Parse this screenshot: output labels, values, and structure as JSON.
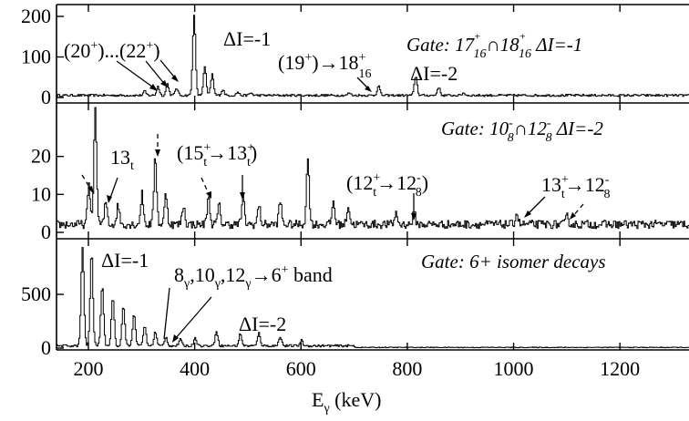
{
  "chart_data": {
    "type": "line",
    "xlabel": "E",
    "xlabel_sub": "γ",
    "xlabel_unit": " (keV)",
    "xlim": [
      140,
      1330
    ],
    "xticks": [
      "200",
      "400",
      "600",
      "800",
      "1000",
      "1200"
    ],
    "grid": false,
    "panels": [
      {
        "gate": {
          "a": "Gate: 17",
          "b": "⁺",
          "c": "16",
          "d": "∩18",
          "e": "⁺",
          "f": "16",
          "g": " ΔI=-1"
        },
        "ylim": [
          0,
          200
        ],
        "yticks": [
          "0",
          "100",
          "200"
        ],
        "series": {
          "name": "",
          "baseline": 5,
          "peaks": [
            [
              305,
              10
            ],
            [
              330,
              22
            ],
            [
              348,
              28
            ],
            [
              365,
              18
            ],
            [
              398,
              200
            ],
            [
              418,
              70
            ],
            [
              432,
              52
            ],
            [
              452,
              14
            ],
            [
              480,
              8
            ],
            [
              505,
              6
            ],
            [
              690,
              6
            ],
            [
              745,
              24
            ],
            [
              815,
              48
            ],
            [
              858,
              20
            ],
            [
              905,
              6
            ]
          ]
        },
        "annotations": [
          {
            "label_a": "(20",
            "sup_a": "+",
            "label_b": ")...(22",
            "sup_b": "+",
            "label_c": ")"
          },
          {
            "label": "ΔI=-1"
          },
          {
            "label_a": "(19",
            "sup_a": "+",
            "label_b": ")→18",
            "sup_b": "+",
            "sub_b": "16"
          },
          {
            "label": "ΔI=-2"
          }
        ]
      },
      {
        "gate": {
          "a": "Gate: 10",
          "b": "-",
          "c": "8",
          "d": "∩12",
          "e": "-",
          "f": "8",
          "g": " ΔI=-2"
        },
        "ylim": [
          0,
          30
        ],
        "yticks": [
          "0",
          "10",
          "20"
        ],
        "series": {
          "name": "",
          "baseline": 2,
          "peaks": [
            [
              200,
              10
            ],
            [
              212,
              30
            ],
            [
              232,
              6
            ],
            [
              255,
              5
            ],
            [
              300,
              8
            ],
            [
              325,
              18
            ],
            [
              345,
              8
            ],
            [
              378,
              5
            ],
            [
              425,
              7
            ],
            [
              445,
              5
            ],
            [
              490,
              7
            ],
            [
              520,
              5
            ],
            [
              560,
              6
            ],
            [
              612,
              17
            ],
            [
              660,
              6
            ],
            [
              688,
              5
            ],
            [
              778,
              3
            ],
            [
              812,
              3
            ],
            [
              1005,
              3
            ],
            [
              1100,
              2
            ]
          ]
        },
        "annotations": [
          {
            "label": "13",
            "sub": "t"
          },
          {
            "label_a": "(15",
            "sup_a": "+",
            "sub_a": "t",
            "label_b": "→13",
            "sup_b": "+",
            "sub_b": "t",
            "label_c": ")"
          },
          {
            "label_a": "(12",
            "sup_a": "+",
            "sub_a": "t",
            "label_b": "→12",
            "sup_b": "-",
            "sub_b": "8",
            "label_c": ")"
          },
          {
            "label_a": "13",
            "sup_a": "+",
            "sub_a": "t",
            "label_b": "→12",
            "sup_b": "-",
            "sub_b": "8"
          }
        ]
      },
      {
        "gate": {
          "a": "Gate: 6+ isomer decays"
        },
        "ylim": [
          0,
          950
        ],
        "yticks": [
          "0",
          "500"
        ],
        "series": {
          "name": "",
          "baseline": 20,
          "peaks": [
            [
              188,
              920
            ],
            [
              205,
              870
            ],
            [
              225,
              560
            ],
            [
              245,
              460
            ],
            [
              265,
              380
            ],
            [
              285,
              300
            ],
            [
              305,
              190
            ],
            [
              325,
              130
            ],
            [
              345,
              80
            ],
            [
              372,
              60
            ],
            [
              400,
              80
            ],
            [
              440,
              140
            ],
            [
              485,
              110
            ],
            [
              520,
              120
            ],
            [
              560,
              90
            ],
            [
              600,
              50
            ]
          ]
        },
        "annotations": [
          {
            "label": "ΔI=-1"
          },
          {
            "label_a": "8",
            "sub_a": "γ",
            "label_b": ",10",
            "sub_b": "γ",
            "label_c": ",12",
            "sub_c": "γ",
            "label_d": "→6",
            "sup_d": "+",
            "label_e": " band"
          },
          {
            "label": "ΔI=-2"
          }
        ]
      }
    ]
  }
}
